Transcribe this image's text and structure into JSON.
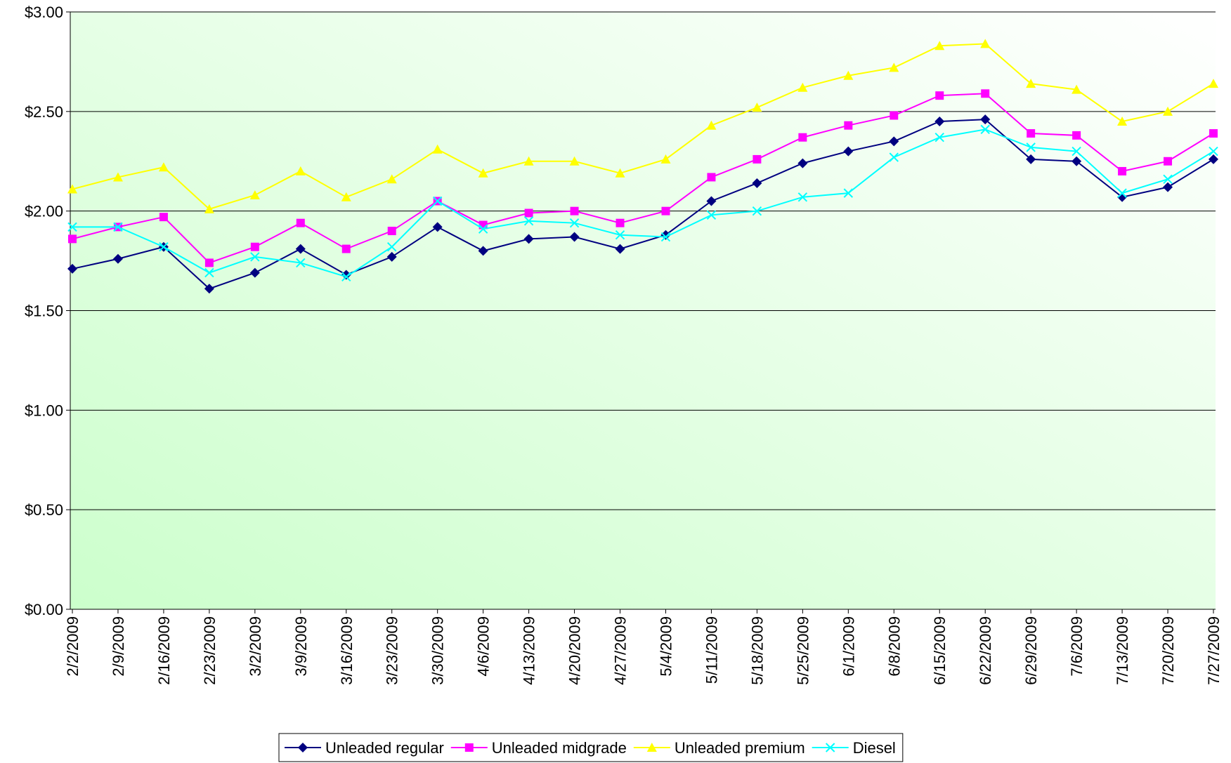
{
  "chart_data": {
    "type": "line",
    "categories": [
      "2/2/2009",
      "2/9/2009",
      "2/16/2009",
      "2/23/2009",
      "3/2/2009",
      "3/9/2009",
      "3/16/2009",
      "3/23/2009",
      "3/30/2009",
      "4/6/2009",
      "4/13/2009",
      "4/20/2009",
      "4/27/2009",
      "5/4/2009",
      "5/11/2009",
      "5/18/2009",
      "5/25/2009",
      "6/1/2009",
      "6/8/2009",
      "6/15/2009",
      "6/22/2009",
      "6/29/2009",
      "7/6/2009",
      "7/13/2009",
      "7/20/2009",
      "7/27/2009"
    ],
    "series": [
      {
        "name": "Unleaded regular",
        "color": "#000080",
        "marker": "diamond",
        "values": [
          1.71,
          1.76,
          1.82,
          1.61,
          1.69,
          1.81,
          1.68,
          1.77,
          1.92,
          1.8,
          1.86,
          1.87,
          1.81,
          1.88,
          2.05,
          2.14,
          2.24,
          2.3,
          2.35,
          2.45,
          2.46,
          2.26,
          2.25,
          2.07,
          2.12,
          2.26
        ]
      },
      {
        "name": "Unleaded midgrade",
        "color": "#ff00ff",
        "marker": "square",
        "values": [
          1.86,
          1.92,
          1.97,
          1.74,
          1.82,
          1.94,
          1.81,
          1.9,
          2.05,
          1.93,
          1.99,
          2.0,
          1.94,
          2.0,
          2.17,
          2.26,
          2.37,
          2.43,
          2.48,
          2.58,
          2.59,
          2.39,
          2.38,
          2.2,
          2.25,
          2.39
        ]
      },
      {
        "name": "Unleaded premium",
        "color": "#ffff00",
        "marker": "triangle",
        "values": [
          2.11,
          2.17,
          2.22,
          2.01,
          2.08,
          2.2,
          2.07,
          2.16,
          2.31,
          2.19,
          2.25,
          2.25,
          2.19,
          2.26,
          2.43,
          2.52,
          2.62,
          2.68,
          2.72,
          2.83,
          2.84,
          2.64,
          2.61,
          2.45,
          2.5,
          2.64
        ]
      },
      {
        "name": "Diesel",
        "color": "#00ffff",
        "marker": "x",
        "values": [
          1.92,
          1.92,
          1.82,
          1.69,
          1.77,
          1.74,
          1.67,
          1.82,
          2.05,
          1.91,
          1.95,
          1.94,
          1.88,
          1.87,
          1.98,
          2.0,
          2.07,
          2.09,
          2.27,
          2.37,
          2.41,
          2.32,
          2.3,
          2.09,
          2.16,
          2.3
        ]
      }
    ],
    "ylim": [
      0,
      3
    ],
    "yticks": [
      {
        "value": 0,
        "label": "$0.00"
      },
      {
        "value": 0.5,
        "label": "$0.50"
      },
      {
        "value": 1,
        "label": "$1.00"
      },
      {
        "value": 1.5,
        "label": "$1.50"
      },
      {
        "value": 2,
        "label": "$2.00"
      },
      {
        "value": 2.5,
        "label": "$2.50"
      },
      {
        "value": 3,
        "label": "$3.00"
      }
    ],
    "grid": true,
    "legend": "bottom"
  }
}
